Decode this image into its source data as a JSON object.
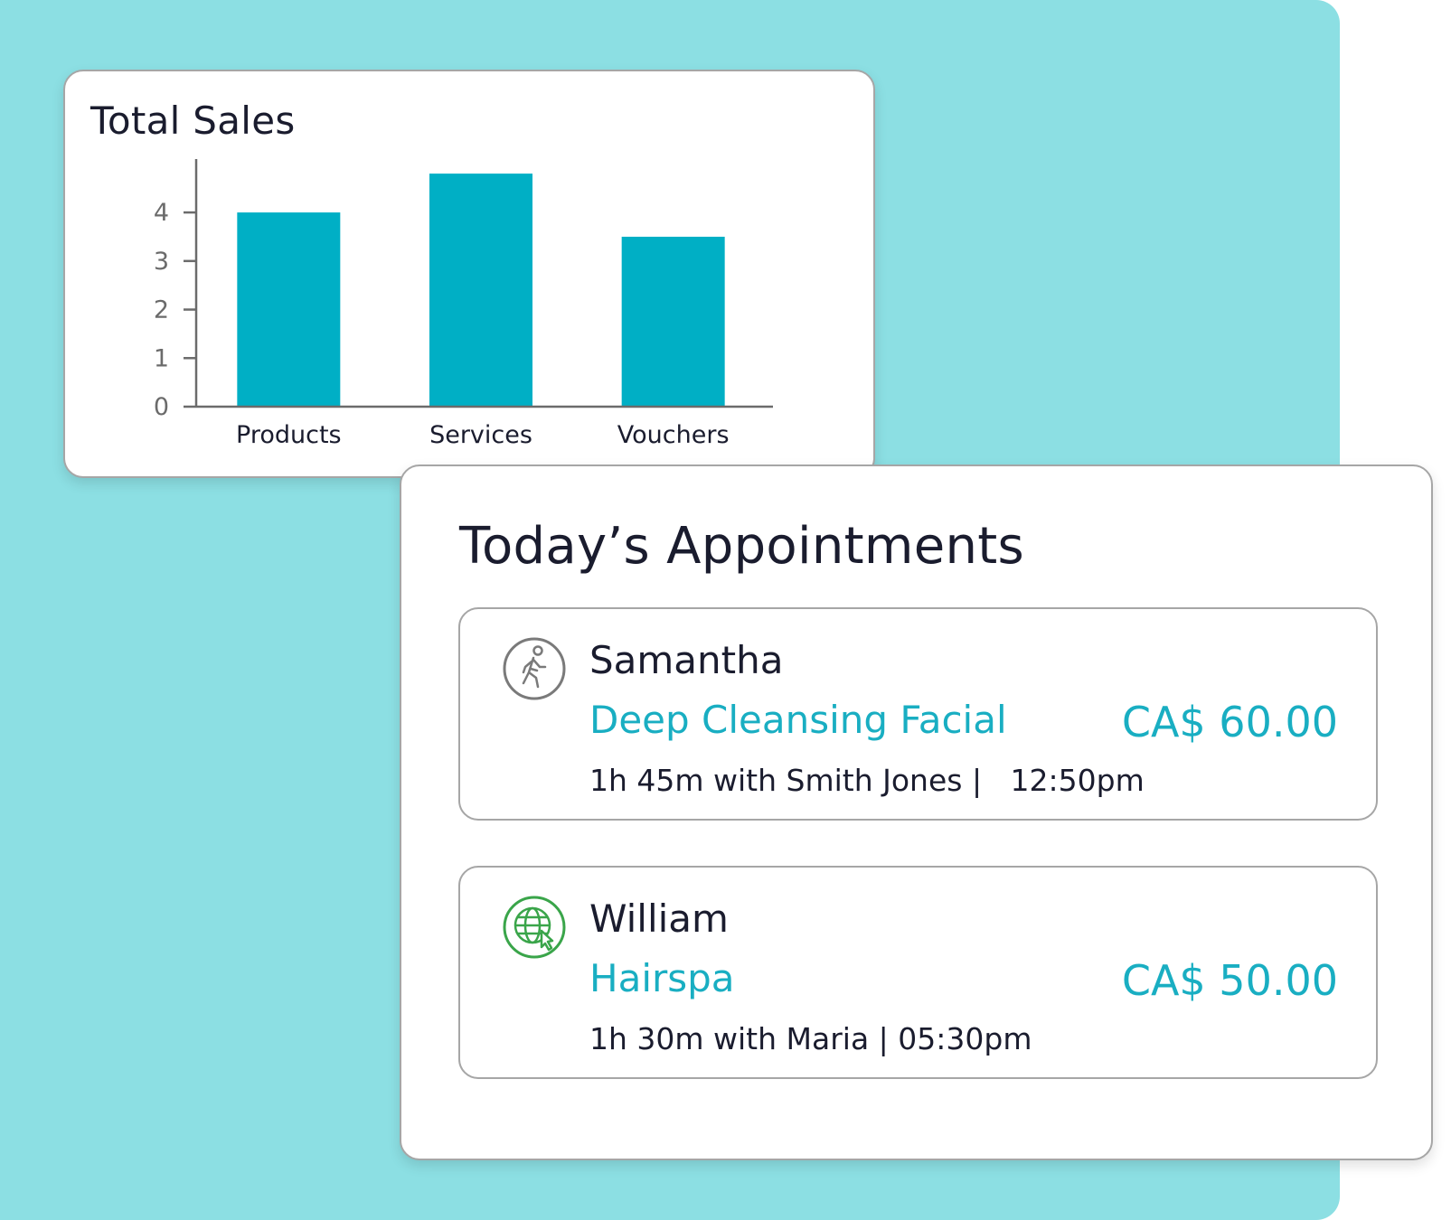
{
  "sales": {
    "title": "Total Sales"
  },
  "chart_data": {
    "type": "bar",
    "title": "Total Sales",
    "categories": [
      "Products",
      "Services",
      "Vouchers"
    ],
    "values": [
      4.0,
      4.8,
      3.5
    ],
    "yticks": [
      0,
      1,
      2,
      3,
      4
    ],
    "ylim": [
      0,
      5.1
    ],
    "xlabel": "",
    "ylabel": "",
    "bar_color": "#00afc5",
    "grid": false
  },
  "appointments": {
    "title": "Today’s Appointments",
    "items": [
      {
        "icon": "walk-in-person-icon",
        "name": "Samantha",
        "service": "Deep Cleansing Facial",
        "price": "CA$ 60.00",
        "detail": "1h 45m with Smith Jones |   12:50pm"
      },
      {
        "icon": "online-booking-globe-icon",
        "name": "William",
        "service": "Hairspa",
        "price": "CA$ 50.00",
        "detail": "1h 30m with Maria | 05:30pm"
      }
    ]
  },
  "colors": {
    "background": "#8cdfe3",
    "accent": "#19aec2",
    "bar": "#00afc5",
    "online_icon": "#3aa54a",
    "walkin_icon": "#7a7a7a"
  }
}
